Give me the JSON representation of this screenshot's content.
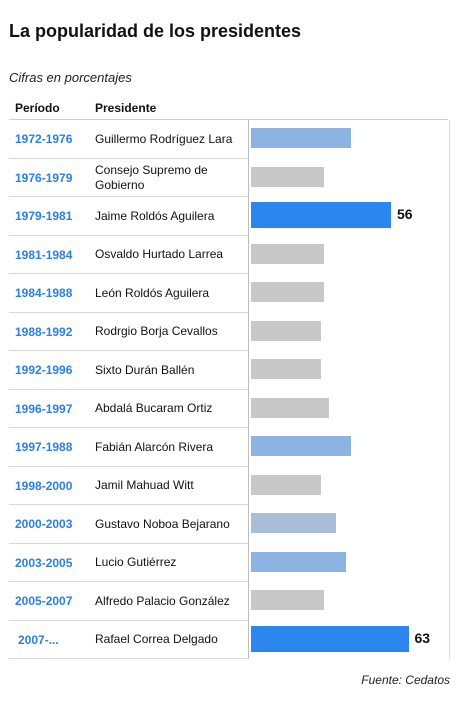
{
  "title": "La popularidad de los presidentes",
  "subtitle": "Cifras en porcentajes",
  "columns": {
    "period": "Período",
    "president": "Presidente"
  },
  "source": "Fuente: Cedatos",
  "colors": {
    "medium_blue": "#8db3e2",
    "gray": "#c8c8c8",
    "bright_blue": "#2b86f0",
    "steel_blue": "#a8bdd6",
    "period_text": "#2a7fe0"
  },
  "chart_data": {
    "type": "bar",
    "orientation": "horizontal",
    "title": "La popularidad de los presidentes",
    "subtitle": "Cifras en porcentajes",
    "xlim": [
      0,
      70
    ],
    "grid": false,
    "categories": [
      "1972-1976",
      "1976-1979",
      "1979-1981",
      "1981-1984",
      "1984-1988",
      "1988-1992",
      "1992-1996",
      "1996-1997",
      "1997-1988",
      "1998-2000",
      "2000-2003",
      "2003-2005",
      "2005-2007",
      "2007-..."
    ],
    "presidents": [
      "Guillermo Rodríguez Lara",
      "Consejo Supremo de Gobierno",
      "Jaime Roldós Aguilera",
      "Osvaldo Hurtado Larrea",
      "León Roldós Aguilera",
      "Rodrgio Borja Cevallos",
      "Sixto Durán Ballén",
      "Abdalá Bucaram Ortiz",
      "Fabián Alarcón Rivera",
      "Jamil Mahuad Witt",
      "Gustavo Noboa Bejarano",
      "Lucio Gutiérrez",
      "Alfredo Palacio González",
      "Rafael Correa Delgado"
    ],
    "values": [
      40,
      29,
      56,
      29,
      29,
      28,
      28,
      31,
      40,
      28,
      34,
      38,
      29,
      63
    ],
    "value_labels": [
      "",
      "",
      "56",
      "",
      "",
      "",
      "",
      "",
      "",
      "",
      "",
      "",
      "",
      "63"
    ],
    "bar_colors": [
      "#8db3e2",
      "#c8c8c8",
      "#2b86f0",
      "#c8c8c8",
      "#c8c8c8",
      "#c8c8c8",
      "#c8c8c8",
      "#c8c8c8",
      "#8db3e2",
      "#c8c8c8",
      "#a8bdd6",
      "#8db3e2",
      "#c8c8c8",
      "#2b86f0"
    ]
  }
}
